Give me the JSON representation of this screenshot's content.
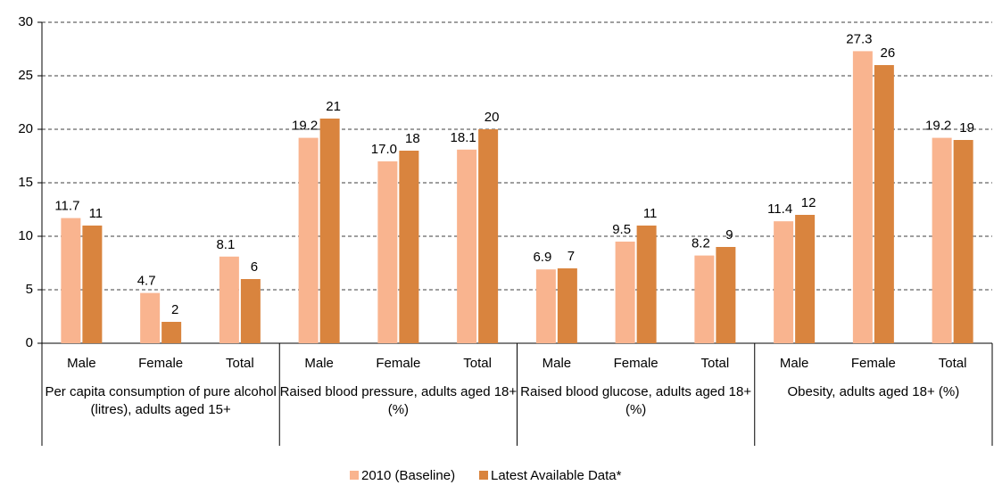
{
  "chart_data": {
    "type": "bar",
    "groups": [
      {
        "name": "Per capita consumption of pure alcohol (litres), adults aged 15+",
        "categories": [
          "Male",
          "Female",
          "Total"
        ]
      },
      {
        "name": "Raised blood pressure, adults aged 18+ (%)",
        "categories": [
          "Male",
          "Female",
          "Total"
        ]
      },
      {
        "name": "Raised blood glucose, adults aged 18+ (%)",
        "categories": [
          "Male",
          "Female",
          "Total"
        ]
      },
      {
        "name": "Obesity, adults aged 18+ (%)",
        "categories": [
          "Male",
          "Female",
          "Total"
        ]
      }
    ],
    "series": [
      {
        "name": "2010 (Baseline)",
        "color": "#f9b48f",
        "values": [
          11.7,
          4.7,
          8.1,
          19.2,
          17.0,
          18.1,
          6.9,
          9.5,
          8.2,
          11.4,
          27.3,
          19.2
        ],
        "value_labels": [
          "11.7",
          "4.7",
          "8.1",
          "19.2",
          "17.0",
          "18.1",
          "6.9",
          "9.5",
          "8.2",
          "11.4",
          "27.3",
          "19.2"
        ]
      },
      {
        "name": "Latest Available Data*",
        "color": "#d9843e",
        "values": [
          11,
          2,
          6,
          21,
          18,
          20,
          7,
          11,
          9,
          12,
          26,
          19
        ]
      }
    ],
    "ylim": [
      0,
      30
    ],
    "yticks": [
      0,
      5,
      10,
      15,
      20,
      25,
      30
    ],
    "grid": true,
    "legend": "bottom"
  }
}
